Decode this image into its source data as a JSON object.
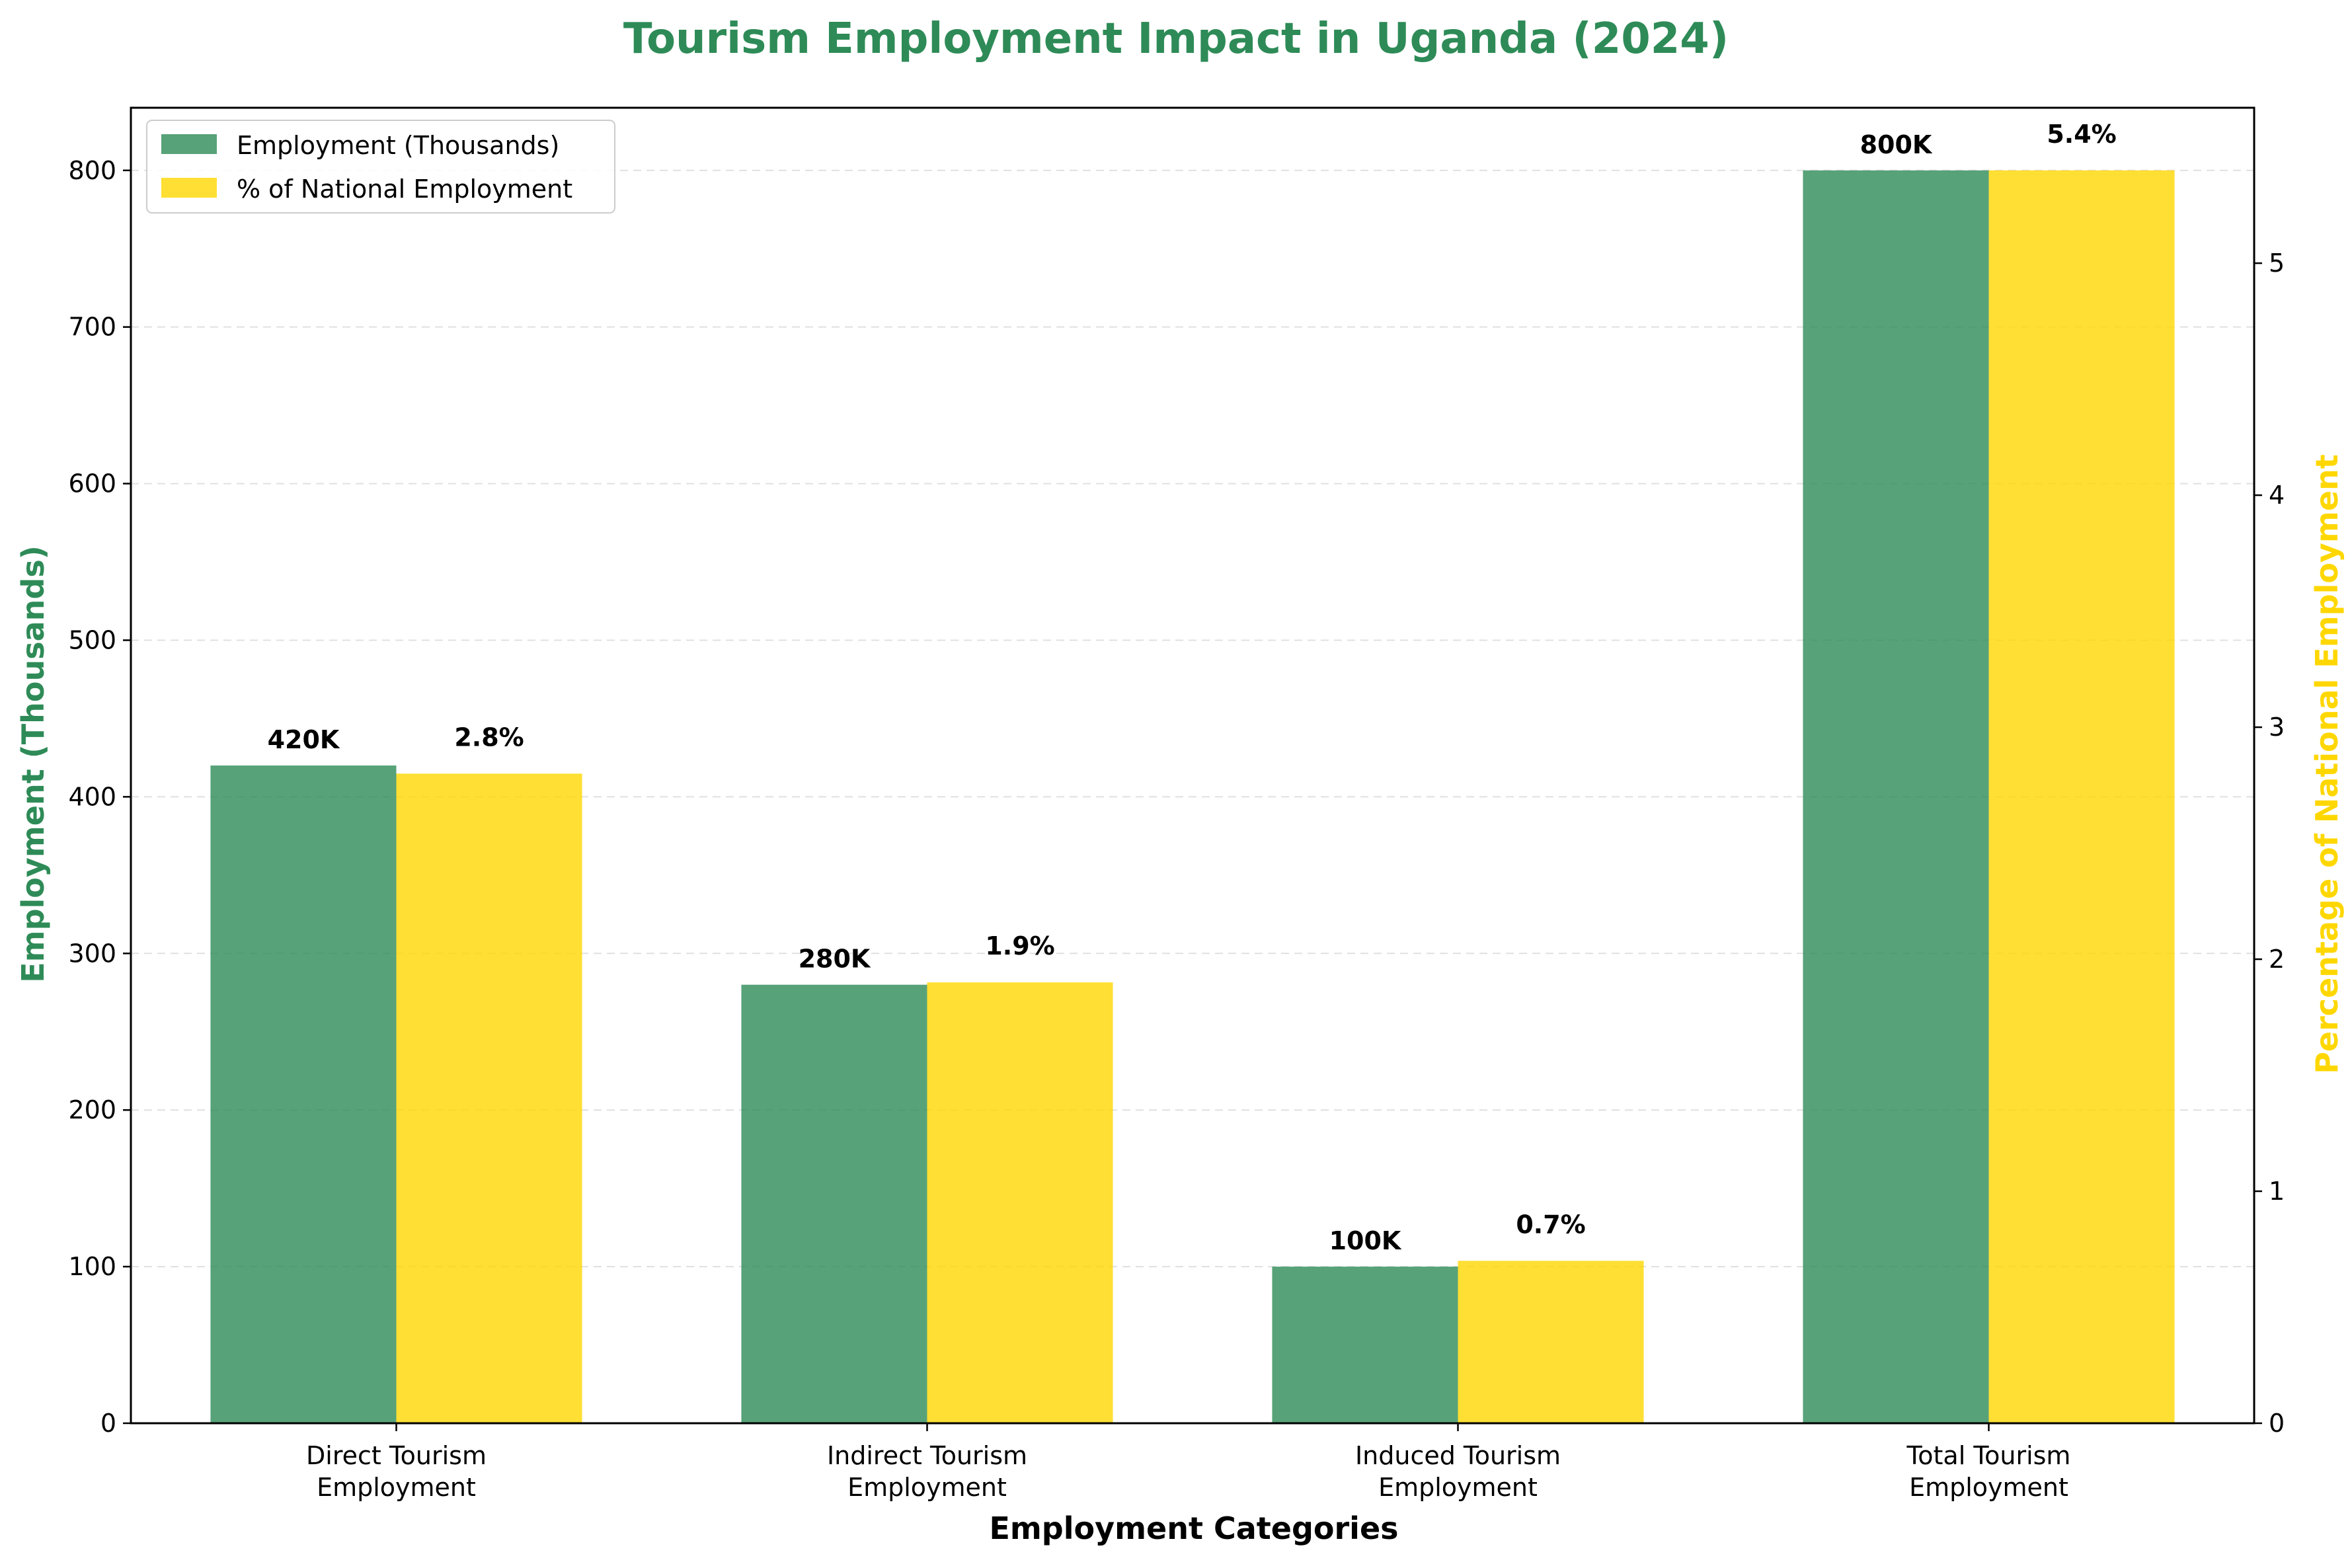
{
  "colors": {
    "employment": "#2e8b57",
    "percentage": "#ffd700",
    "title": "#2e8b57",
    "left_axis_label": "#2e8b57",
    "right_axis_label": "#ffd700"
  },
  "chart_data": {
    "type": "bar",
    "title": "Tourism Employment Impact in Uganda (2024)",
    "xlabel": "Employment Categories",
    "ylabel": "Employment (Thousands)",
    "y2label": "Percentage of National Employment",
    "categories": [
      [
        "Direct Tourism",
        "Employment"
      ],
      [
        "Indirect Tourism",
        "Employment"
      ],
      [
        "Induced Tourism",
        "Employment"
      ],
      [
        "Total Tourism",
        "Employment"
      ]
    ],
    "series": [
      {
        "name": "Employment (Thousands)",
        "axis": "left",
        "values": [
          420,
          280,
          100,
          800
        ],
        "labels": [
          "420K",
          "280K",
          "100K",
          "800K"
        ]
      },
      {
        "name": "% of National Employment",
        "axis": "right",
        "values": [
          2.8,
          1.9,
          0.7,
          5.4
        ],
        "labels": [
          "2.8%",
          "1.9%",
          "0.7%",
          "5.4%"
        ]
      }
    ],
    "ylim": [
      0,
      840
    ],
    "y2lim": [
      0,
      5.67
    ],
    "yticks": [
      0,
      100,
      200,
      300,
      400,
      500,
      600,
      700,
      800
    ],
    "y2ticks": [
      0,
      1,
      2,
      3,
      4,
      5
    ],
    "grid": true,
    "legend_position": "top-left"
  }
}
